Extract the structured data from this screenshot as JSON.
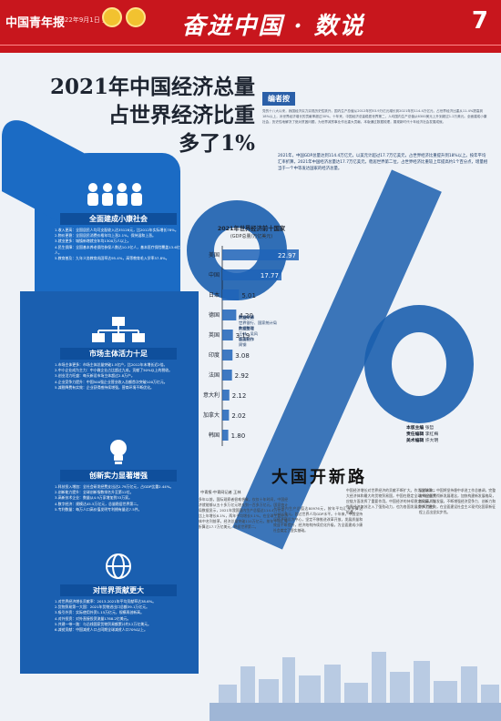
{
  "header": {
    "logo": "中国青年报",
    "date": "2022年9月1日 星期四",
    "title": "奋进中国 · 数说",
    "page_no": "7"
  },
  "headline": [
    "2021年中国经济总量",
    "占世界经济比重",
    "多了1%"
  ],
  "editor": {
    "tag": "编者按",
    "text": "党的十八大以来，我国经济实力实现历史性跃升。国内生产总值从2012年的53.9万亿元增长到2021年的114.4万亿元，占世界经济比重从11.4%提高到18%以上，对世界经济增长的贡献率超过30%。十年来，中国经济总量稳居世界第二，人均国内生产总值从6300美元上升到超过1.2万美元。全面建成小康社会，历史性地解决了绝对贫困问题，为世界减贫事业作出重大贡献。本版通过数据梳理，展现新时代十年经济社会发展成就。"
  },
  "note": "2021年，中国GDP总量达到114.4万亿元，以美元计超过17.7万亿美元，占世界经济比重提升到18%以上。按年平均汇率折算，2021年中国经济总量达17.7万亿美元，稳居世界第二位，占世界经济比重较上年提高约1个百分点，增量相当于一个中等发达国家的经济总量。",
  "sections": [
    {
      "title": "全面建成小康社会",
      "items": [
        "1.收入更高：全国居民人均可支配收入达35128元，比2012年实际增长78%。",
        "2.物价更稳：全国居民消费价格年均上涨2.1%，保持温和上涨。",
        "3.就业更多：城镇新增就业年均1300万人以上。",
        "4.民生保障：全国基本养老保险参保人数达10.3亿人，基本医疗保险覆盖13.6亿人。",
        "5.教育普及：九年义务教育巩固率达95.4%，高等教育毛入学率57.8%。"
      ]
    },
    {
      "title": "市场主体活力十足",
      "items": [
        "1.市场主体更多：市场主体总量突破1.5亿户，比2012年末增长近2倍。",
        "2.中小企业成为主力：中小微企业占比超过九成，贡献了50%以上的税收。",
        "3.创业活力旺盛：每天新设市场主体超过2.8万户。",
        "4.企业竞争力提升：中国500强企业营业收入总额首次突破100万亿元。",
        "5.减税降费有实效：企业获得感持续增强，营商环境不断优化。"
      ]
    },
    {
      "title": "创新实力显著增强",
      "items": [
        "1.科技投入增加：全社会研发经费支出达2.79万亿元，占GDP比重2.44%。",
        "2.创新能力提升：全球创新指数排名升至第12位。",
        "3.高新技术企业：数量从4.9万家增加到33万家。",
        "4.数字经济：规模达45.5万亿元，总量稳居世界第二。",
        "5.专利数量：每万人口高价值发明专利拥有量达7.5件。"
      ]
    },
    {
      "title": "对世界贡献更大",
      "items": [
        "1.对世界经济增长贡献率：2013-2021年平均贡献率达38.6%。",
        "2.货物贸易第一大国：2021年货物进出口总额39.1万亿元。",
        "3.吸引外资：实际使用外资1.15万亿元，规模再创新高。",
        "4.对外投资：对外直接投资流量1788.2亿美元。",
        "5.共建一带一路：与沿线国家货物贸易额累计约12万亿美元。",
        "6.减贫贡献：中国减贫人口占同期全球减贫人口70%以上。"
      ]
    }
  ],
  "chart_data": {
    "type": "bar",
    "title": "2021年世界经济前十国家",
    "subtitle": "(GDP总量/万亿美元)",
    "categories": [
      "美国",
      "中国",
      "日本",
      "德国",
      "英国",
      "印度",
      "法国",
      "意大利",
      "加拿大",
      "韩国"
    ],
    "values": [
      22.97,
      17.77,
      5.01,
      4.2,
      3.19,
      3.08,
      2.92,
      2.12,
      2.02,
      1.8
    ],
    "colors": {
      "accent": "#1f64b9",
      "axis": "#1d2430"
    }
  },
  "legend": [
    {
      "k": "数据来源",
      "v": "世界银行、国家统计局"
    },
    {
      "k": "数据整理",
      "v": "王林、吴风"
    },
    {
      "k": "版面制作",
      "v": "周钢"
    }
  ],
  "credit": [
    {
      "k": "本版主编",
      "v": "张哲"
    },
    {
      "k": "责任编辑",
      "v": "李红梅"
    },
    {
      "k": "美术编辑",
      "v": "许大明"
    }
  ],
  "article": {
    "title": "大国开新路",
    "byline": "中青报·中青网记者 王林",
    "cols": [
      "多年以前，国际观察者很难想象，仅仅十年时间，中国经济就能够从五十多万亿元增长到一百多万亿元。国家统计局数据显示，2021年我国国内生产总值达114.4万亿元，比上年增长8.1%，两年平均增长5.1%，在全球主要经济体中名列前茅。经济总量突破110万亿元，按年平均汇率折算达17.7万亿美元，稳居世界第二。",
      "人均国内生产总值达80976元，按年平均汇率折算达12551美元，超过世界人均GDP水平。十年来，中国坚持以经济建设为中心，坚定不移推进改革开放，发展质量和效益不断提升，经济结构持续优化升级，为全面建成小康社会奠定了坚实基础。",
      "中国经济增长对世界经济的贡献不断扩大。作为全球第二大经济体和最大的货物贸易国，中国在稳定全球产业链供应链方面发挥了重要作用。中国经济的持续稳定发展，为世界经济复苏注入了强劲动力，也为各国发展提供了更多机遇。",
      "展望未来，中国将坚持稳中求进工作总基调，完整准确全面贯彻新发展理念，加快构建新发展格局，推动高质量发展，不断增强经济竞争力、创新力和抗风险能力，在全面建设社会主义现代化国家新征程上迈出坚实步伐。"
    ]
  }
}
